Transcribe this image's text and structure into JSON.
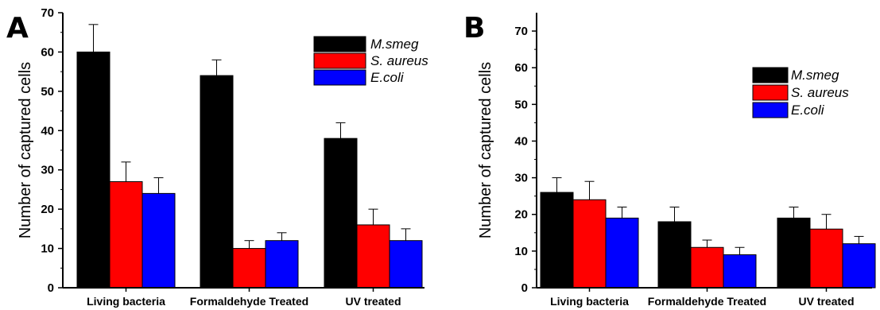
{
  "chart_data": [
    {
      "panel_label": "A",
      "type": "bar",
      "categories": [
        "Living bacteria",
        "Formaldehyde Treated",
        "UV treated"
      ],
      "series": [
        {
          "name": "M.smeg",
          "color": "#000000",
          "values": [
            60,
            54,
            38
          ],
          "errors": [
            7,
            4,
            4
          ]
        },
        {
          "name": "S. aureus",
          "color": "#ff0000",
          "values": [
            27,
            10,
            16
          ],
          "errors": [
            5,
            2,
            4
          ]
        },
        {
          "name": "E.coli",
          "color": "#0000ff",
          "values": [
            24,
            12,
            12
          ],
          "errors": [
            4,
            2,
            3
          ]
        }
      ],
      "ylabel": "Number of captured cells",
      "ylim": [
        0,
        70
      ],
      "yticks": [
        "0",
        "10",
        "20",
        "30",
        "40",
        "50",
        "60",
        "70"
      ],
      "legend_position": "top-right",
      "grid": false
    },
    {
      "panel_label": "B",
      "type": "bar",
      "categories": [
        "Living bacteria",
        "Formaldehyde Treated",
        "UV treated"
      ],
      "series": [
        {
          "name": "M.smeg",
          "color": "#000000",
          "values": [
            26,
            18,
            19
          ],
          "errors": [
            4,
            4,
            3
          ]
        },
        {
          "name": "S. aureus",
          "color": "#ff0000",
          "values": [
            24,
            11,
            16
          ],
          "errors": [
            5,
            2,
            4
          ]
        },
        {
          "name": "E.coli",
          "color": "#0000ff",
          "values": [
            19,
            9,
            12
          ],
          "errors": [
            3,
            2,
            2
          ]
        }
      ],
      "ylabel": "Number of captured cells",
      "ylim": [
        0,
        75
      ],
      "yticks": [
        "0",
        "10",
        "20",
        "30",
        "40",
        "50",
        "60",
        "70"
      ],
      "legend_position": "top-right",
      "grid": false
    }
  ]
}
